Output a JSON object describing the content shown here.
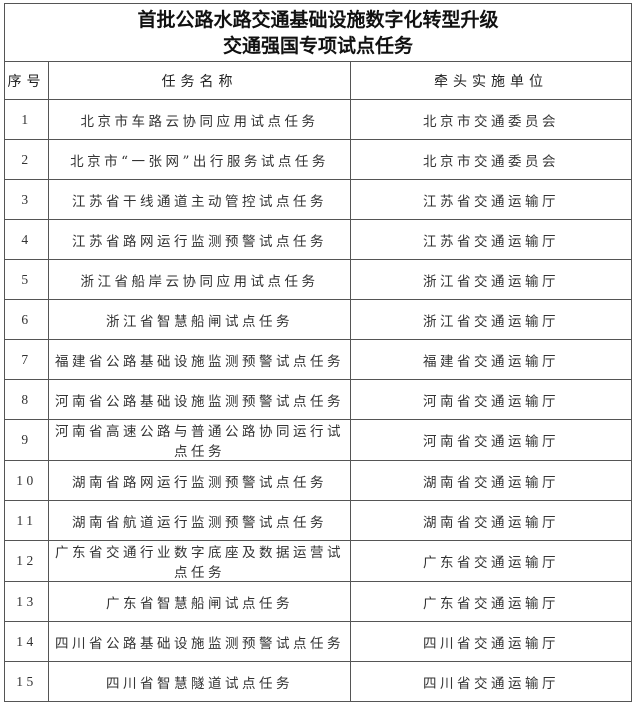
{
  "title_line1": "首批公路水路交通基础设施数字化转型升级",
  "title_line2": "交通强国专项试点任务",
  "headers": {
    "no": "序号",
    "task": "任务名称",
    "unit": "牵头实施单位"
  },
  "rows": [
    {
      "no": "1",
      "task": "北京市车路云协同应用试点任务",
      "unit": "北京市交通委员会"
    },
    {
      "no": "2",
      "task": "北京市“一张网”出行服务试点任务",
      "unit": "北京市交通委员会"
    },
    {
      "no": "3",
      "task": "江苏省干线通道主动管控试点任务",
      "unit": "江苏省交通运输厅"
    },
    {
      "no": "4",
      "task": "江苏省路网运行监测预警试点任务",
      "unit": "江苏省交通运输厅"
    },
    {
      "no": "5",
      "task": "浙江省船岸云协同应用试点任务",
      "unit": "浙江省交通运输厅"
    },
    {
      "no": "6",
      "task": "浙江省智慧船闸试点任务",
      "unit": "浙江省交通运输厅"
    },
    {
      "no": "7",
      "task": "福建省公路基础设施监测预警试点任务",
      "unit": "福建省交通运输厅"
    },
    {
      "no": "8",
      "task": "河南省公路基础设施监测预警试点任务",
      "unit": "河南省交通运输厅"
    },
    {
      "no": "9",
      "task": "河南省高速公路与普通公路协同运行试点任务",
      "unit": "河南省交通运输厅"
    },
    {
      "no": "10",
      "task": "湖南省路网运行监测预警试点任务",
      "unit": "湖南省交通运输厅"
    },
    {
      "no": "11",
      "task": "湖南省航道运行监测预警试点任务",
      "unit": "湖南省交通运输厅"
    },
    {
      "no": "12",
      "task": "广东省交通行业数字底座及数据运营试点任务",
      "unit": "广东省交通运输厅"
    },
    {
      "no": "13",
      "task": "广东省智慧船闸试点任务",
      "unit": "广东省交通运输厅"
    },
    {
      "no": "14",
      "task": "四川省公路基础设施监测预警试点任务",
      "unit": "四川省交通运输厅"
    },
    {
      "no": "15",
      "task": "四川省智慧隧道试点任务",
      "unit": "四川省交通运输厅"
    }
  ]
}
